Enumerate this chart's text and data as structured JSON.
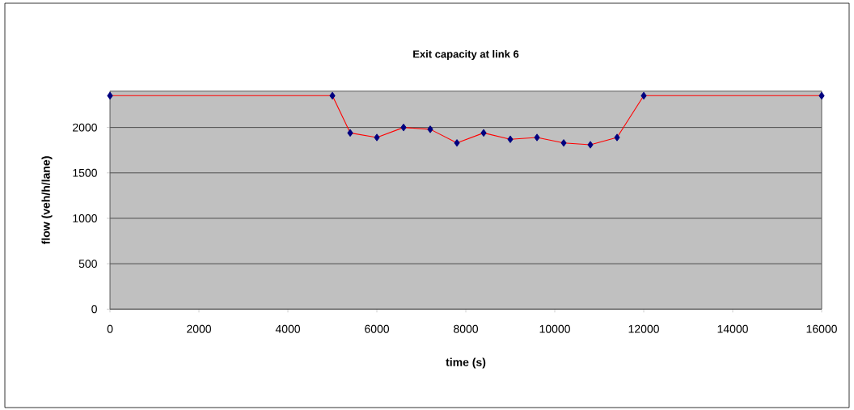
{
  "chart_data": {
    "type": "line",
    "title": "Exit capacity at link 6",
    "xlabel": "time (s)",
    "ylabel": "flow (veh/h/lane)",
    "x": [
      0,
      5000,
      5400,
      6000,
      6600,
      7200,
      7800,
      8400,
      9000,
      9600,
      10200,
      10800,
      11400,
      12000,
      16000
    ],
    "series": [
      {
        "color": "#ff0000",
        "values": [
          2350,
          2350,
          1940,
          1890,
          2000,
          1980,
          1830,
          1940,
          1870,
          1890,
          1830,
          1810,
          1890,
          2350,
          2350
        ]
      }
    ],
    "marker": "diamond",
    "line_style": "solid",
    "xlim": [
      0,
      16000
    ],
    "xticks": [
      0,
      2000,
      4000,
      6000,
      8000,
      10000,
      12000,
      14000,
      16000
    ],
    "ylim": [
      0,
      2400
    ],
    "yticks": [
      0,
      500,
      1000,
      1500,
      2000
    ],
    "grid": "y"
  }
}
